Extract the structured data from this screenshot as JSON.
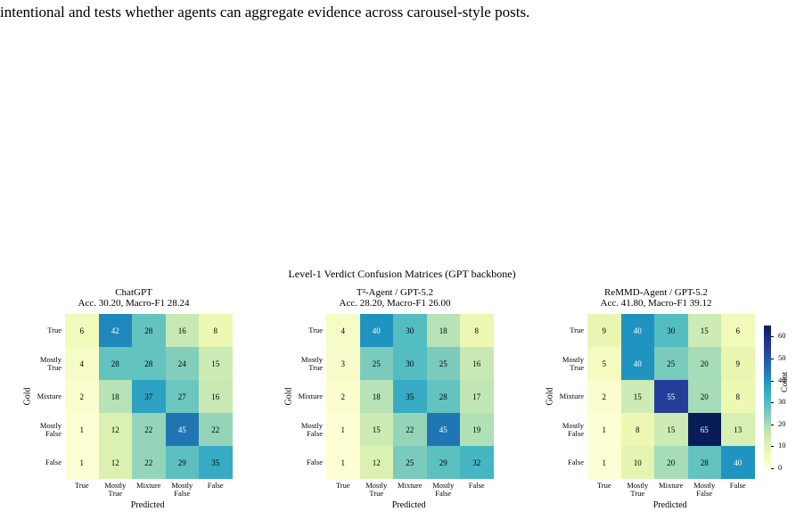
{
  "intro_text": "intentional and tests whether agents can aggregate evidence across carousel-style posts.",
  "figure": {
    "suptitle": "Level-1 Verdict Confusion Matrices (GPT backbone)",
    "xlabel": "Predicted",
    "ylabel": "Gold",
    "colorbar_label": "Count",
    "colorbar_ticks": [
      "0",
      "10",
      "20",
      "30",
      "40",
      "50",
      "60"
    ],
    "labels": [
      [
        "True"
      ],
      [
        "Mostly",
        "True"
      ],
      [
        "Mixture"
      ],
      [
        "Mostly",
        "False"
      ],
      [
        "False"
      ]
    ]
  },
  "chart_data": [
    {
      "type": "heatmap",
      "title": "ChatGPT",
      "subtitle": "Acc. 30.20, Macro-F1 28.24",
      "xlabel": "Predicted",
      "ylabel": "Gold",
      "x": [
        "True",
        "Mostly True",
        "Mixture",
        "Mostly False",
        "False"
      ],
      "y": [
        "True",
        "Mostly True",
        "Mixture",
        "Mostly False",
        "False"
      ],
      "values": [
        [
          6,
          42,
          28,
          16,
          8
        ],
        [
          4,
          28,
          28,
          24,
          15
        ],
        [
          2,
          18,
          37,
          27,
          16
        ],
        [
          1,
          12,
          22,
          45,
          22
        ],
        [
          1,
          12,
          22,
          29,
          35
        ]
      ],
      "vmin": 0,
      "vmax": 65
    },
    {
      "type": "heatmap",
      "title": "T²-Agent / GPT-5.2",
      "subtitle": "Acc. 28.20, Macro-F1 26.00",
      "xlabel": "Predicted",
      "ylabel": "Gold",
      "x": [
        "True",
        "Mostly True",
        "Mixture",
        "Mostly False",
        "False"
      ],
      "y": [
        "True",
        "Mostly True",
        "Mixture",
        "Mostly False",
        "False"
      ],
      "values": [
        [
          4,
          40,
          30,
          18,
          8
        ],
        [
          3,
          25,
          30,
          25,
          16
        ],
        [
          2,
          18,
          35,
          28,
          17
        ],
        [
          1,
          15,
          22,
          45,
          19
        ],
        [
          1,
          12,
          25,
          29,
          32
        ]
      ],
      "vmin": 0,
      "vmax": 65
    },
    {
      "type": "heatmap",
      "title": "ReMMD-Agent / GPT-5.2",
      "subtitle": "Acc. 41.80, Macro-F1 39.12",
      "xlabel": "Predicted",
      "ylabel": "Gold",
      "x": [
        "True",
        "Mostly True",
        "Mixture",
        "Mostly False",
        "False"
      ],
      "y": [
        "True",
        "Mostly True",
        "Mixture",
        "Mostly False",
        "False"
      ],
      "values": [
        [
          9,
          40,
          30,
          15,
          6
        ],
        [
          5,
          40,
          25,
          20,
          9
        ],
        [
          2,
          15,
          55,
          20,
          8
        ],
        [
          1,
          8,
          15,
          65,
          13
        ],
        [
          1,
          10,
          20,
          28,
          40
        ]
      ],
      "vmin": 0,
      "vmax": 65
    }
  ]
}
